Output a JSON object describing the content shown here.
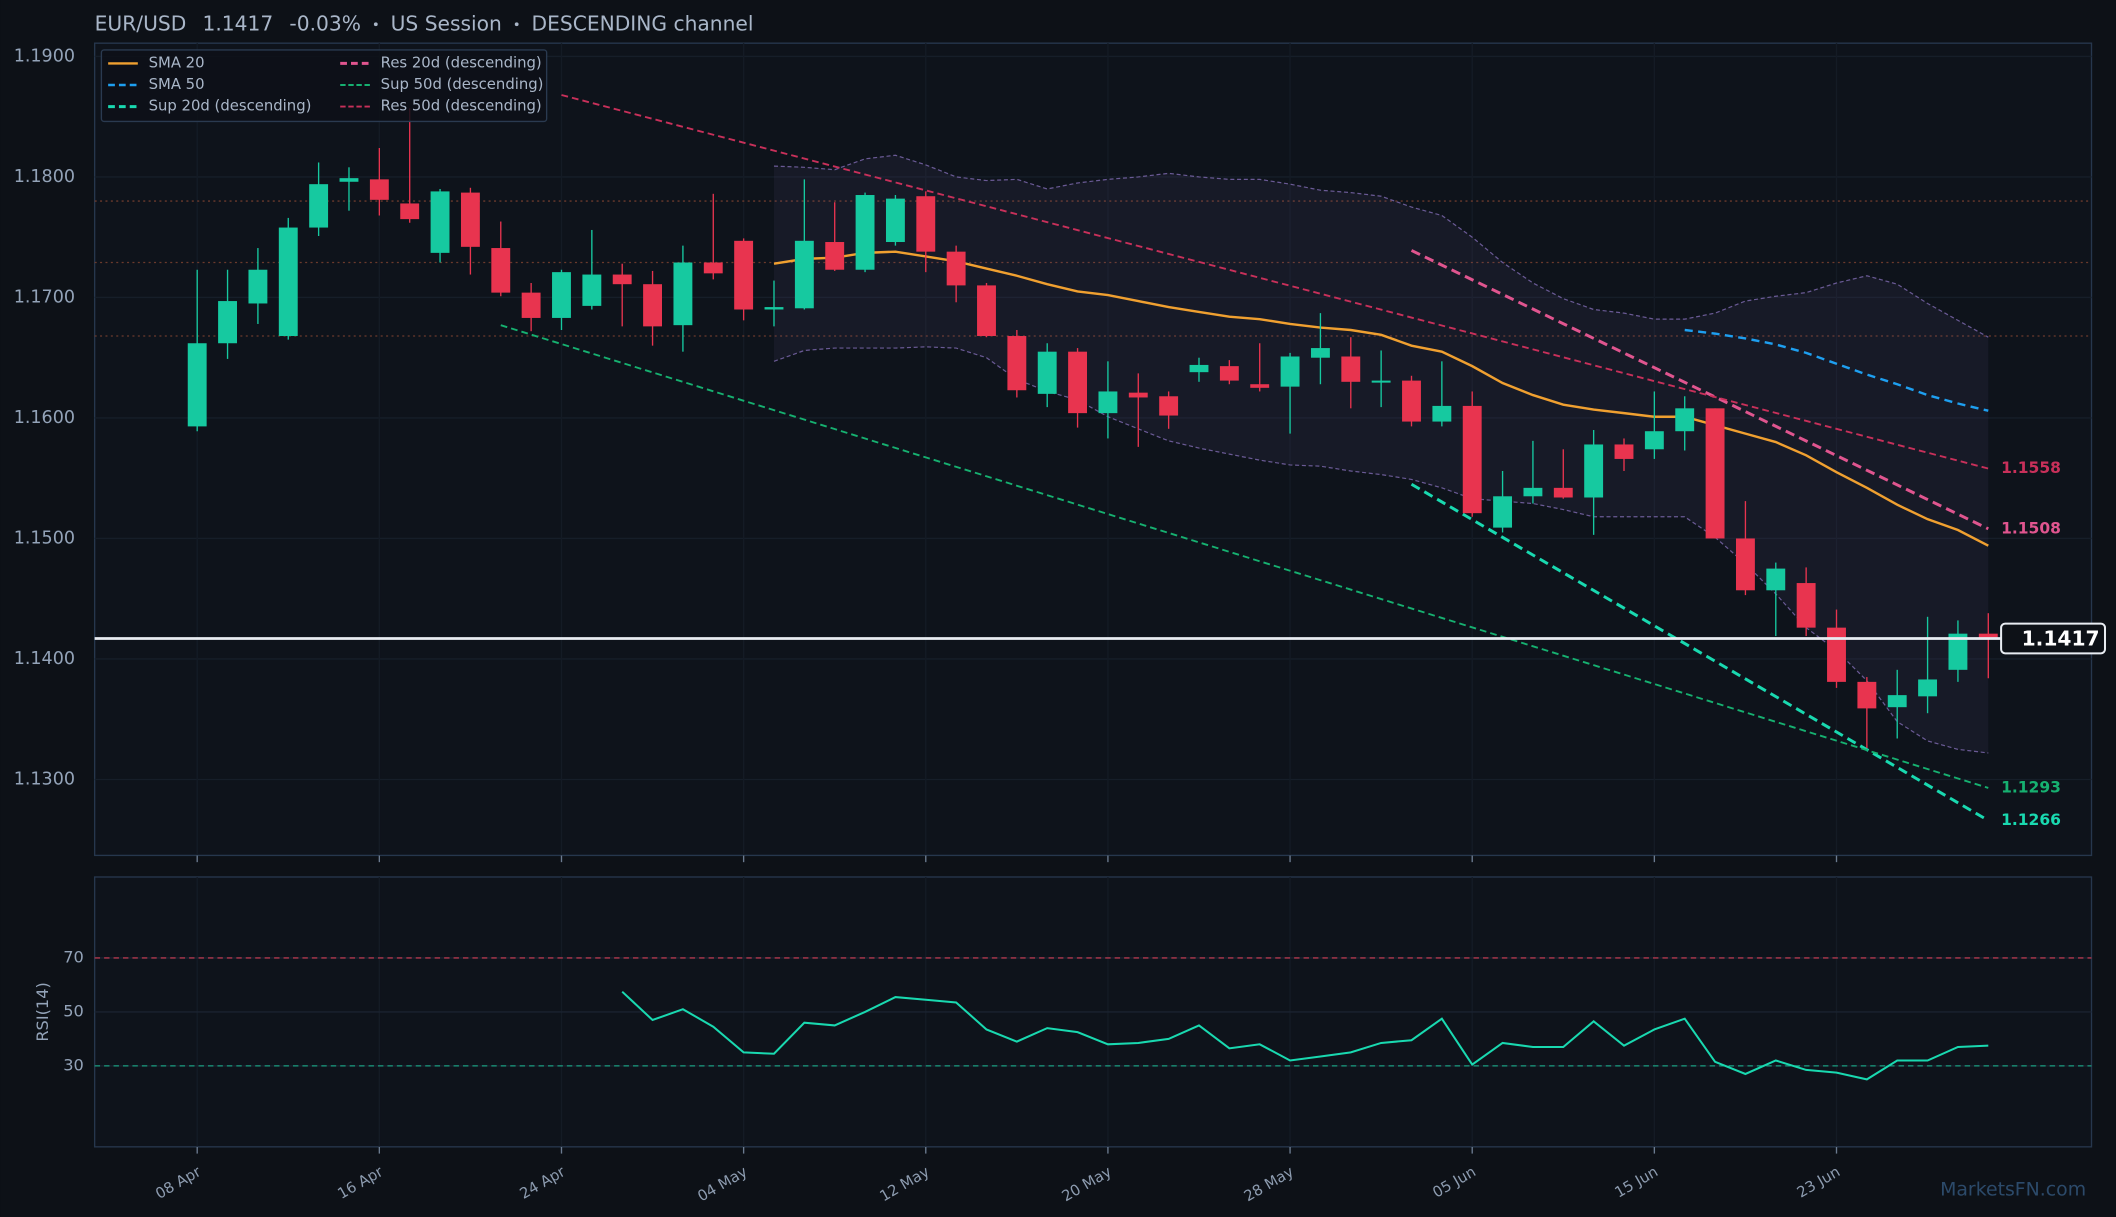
{
  "chart_data": [
    {
      "type": "candlestick",
      "symbol": "EUR/USD",
      "price": 1.1417,
      "change_label": "-0.03%",
      "session": "US Session",
      "channel": "DESCENDING channel",
      "watermark": "MarketsFN.com",
      "categories": [
        "08 Apr",
        null,
        null,
        null,
        null,
        null,
        "16 Apr",
        null,
        null,
        null,
        null,
        null,
        "24 Apr",
        null,
        null,
        null,
        null,
        null,
        "04 May",
        null,
        null,
        null,
        null,
        null,
        "12 May",
        null,
        null,
        null,
        null,
        null,
        "20 May",
        null,
        null,
        null,
        null,
        null,
        "28 May",
        null,
        null,
        null,
        null,
        null,
        "05 Jun",
        null,
        null,
        null,
        null,
        null,
        "15 Jun",
        null,
        null,
        null,
        null,
        null,
        "23 Jun",
        null,
        null,
        null,
        null,
        null
      ],
      "open": [
        1.1593,
        1.1662,
        1.1695,
        1.1668,
        1.1758,
        1.1796,
        1.1798,
        1.1778,
        1.1737,
        1.1787,
        1.1741,
        1.1704,
        1.1683,
        1.1693,
        1.1719,
        1.1711,
        1.1677,
        1.1729,
        1.1747,
        1.169,
        1.1691,
        1.1746,
        1.1723,
        1.1746,
        1.1784,
        1.1738,
        1.171,
        1.1668,
        1.162,
        1.1655,
        1.1604,
        1.1621,
        1.1618,
        1.1638,
        1.1643,
        1.1628,
        1.1626,
        1.165,
        1.1651,
        1.163,
        1.1631,
        1.1597,
        1.161,
        1.1509,
        1.1535,
        1.1542,
        1.1534,
        1.1578,
        1.1574,
        1.1589,
        1.1608,
        1.15,
        1.1457,
        1.1463,
        1.1426,
        1.1381,
        1.136,
        1.1369,
        1.1391,
        1.1421
      ],
      "high": [
        1.1723,
        1.1723,
        1.1741,
        1.1766,
        1.1812,
        1.1808,
        1.1824,
        1.1857,
        1.179,
        1.1791,
        1.1763,
        1.1712,
        1.1723,
        1.1756,
        1.1728,
        1.1722,
        1.1743,
        1.1786,
        1.1749,
        1.1714,
        1.1798,
        1.1779,
        1.1787,
        1.1785,
        1.1788,
        1.1743,
        1.1712,
        1.1673,
        1.1662,
        1.1658,
        1.1647,
        1.1637,
        1.1622,
        1.165,
        1.1648,
        1.1662,
        1.1654,
        1.1687,
        1.1667,
        1.1656,
        1.1635,
        1.1647,
        1.1622,
        1.1556,
        1.1581,
        1.1574,
        1.159,
        1.1583,
        1.1622,
        1.1618,
        1.1608,
        1.1531,
        1.148,
        1.1476,
        1.1441,
        1.1385,
        1.1391,
        1.1435,
        1.1432,
        1.1438
      ],
      "low": [
        1.1589,
        1.1649,
        1.1678,
        1.1665,
        1.1751,
        1.1772,
        1.1768,
        1.1762,
        1.1729,
        1.1719,
        1.1701,
        1.1672,
        1.1673,
        1.169,
        1.1676,
        1.166,
        1.1655,
        1.1715,
        1.1681,
        1.1676,
        1.169,
        1.1722,
        1.1721,
        1.1743,
        1.1721,
        1.1696,
        1.1667,
        1.1617,
        1.1609,
        1.1592,
        1.1583,
        1.1576,
        1.1591,
        1.163,
        1.1628,
        1.1622,
        1.1587,
        1.1628,
        1.1608,
        1.1609,
        1.1593,
        1.1593,
        1.1518,
        1.1505,
        1.1529,
        1.1533,
        1.1503,
        1.1556,
        1.1566,
        1.1573,
        1.15,
        1.1453,
        1.1419,
        1.1419,
        1.1376,
        1.1326,
        1.1334,
        1.1355,
        1.1381,
        1.1384
      ],
      "close": [
        1.1662,
        1.1697,
        1.1723,
        1.1758,
        1.1794,
        1.1799,
        1.1781,
        1.1765,
        1.1788,
        1.1742,
        1.1704,
        1.1683,
        1.1721,
        1.1719,
        1.1711,
        1.1676,
        1.1729,
        1.172,
        1.169,
        1.1692,
        1.1747,
        1.1723,
        1.1785,
        1.1782,
        1.1738,
        1.171,
        1.1668,
        1.1623,
        1.1655,
        1.1604,
        1.1622,
        1.1617,
        1.1602,
        1.1644,
        1.1631,
        1.1625,
        1.1651,
        1.1658,
        1.163,
        1.1631,
        1.1597,
        1.161,
        1.1521,
        1.1535,
        1.1542,
        1.1534,
        1.1578,
        1.1566,
        1.1589,
        1.1608,
        1.15,
        1.1457,
        1.1475,
        1.1426,
        1.1381,
        1.1359,
        1.137,
        1.1383,
        1.1421,
        1.1417
      ],
      "up_color": "#16c9a0",
      "down_color": "#e8344f",
      "series": [
        {
          "name": "SMA 20",
          "color": "#f0a030",
          "dash": "solid",
          "values": [
            null,
            null,
            null,
            null,
            null,
            null,
            null,
            null,
            null,
            null,
            null,
            null,
            null,
            null,
            null,
            null,
            null,
            null,
            null,
            1.1728,
            1.1732,
            1.1733,
            1.1737,
            1.1738,
            1.1734,
            1.173,
            1.1724,
            1.1718,
            1.1711,
            1.1705,
            1.1702,
            1.1697,
            1.1692,
            1.1688,
            1.1684,
            1.1682,
            1.1678,
            1.1675,
            1.1673,
            1.1669,
            1.166,
            1.1655,
            1.1643,
            1.1629,
            1.1619,
            1.1611,
            1.1607,
            1.1604,
            1.1601,
            1.1601,
            1.1594,
            1.1587,
            1.158,
            1.1569,
            1.1555,
            1.1542,
            1.1528,
            1.1516,
            1.1507,
            1.1494
          ]
        },
        {
          "name": "SMA 50",
          "color": "#1e9ff0",
          "dash": "dashed",
          "values": [
            null,
            null,
            null,
            null,
            null,
            null,
            null,
            null,
            null,
            null,
            null,
            null,
            null,
            null,
            null,
            null,
            null,
            null,
            null,
            null,
            null,
            null,
            null,
            null,
            null,
            null,
            null,
            null,
            null,
            null,
            null,
            null,
            null,
            null,
            null,
            null,
            null,
            null,
            null,
            null,
            null,
            null,
            null,
            null,
            null,
            null,
            null,
            null,
            null,
            1.1673,
            1.167,
            1.1666,
            1.1661,
            1.1654,
            1.1645,
            1.1636,
            1.1628,
            1.1619,
            1.1612,
            1.1606
          ]
        }
      ],
      "bands": {
        "color": "#6a5a95",
        "upper": [
          null,
          null,
          null,
          null,
          null,
          null,
          null,
          null,
          null,
          null,
          null,
          null,
          null,
          null,
          null,
          null,
          null,
          null,
          null,
          1.1809,
          1.1808,
          1.1806,
          1.1815,
          1.1818,
          1.181,
          1.18,
          1.1797,
          1.1798,
          1.179,
          1.1795,
          1.1798,
          1.18,
          1.1803,
          1.18,
          1.1798,
          1.1798,
          1.1794,
          1.1789,
          1.1787,
          1.1784,
          1.1775,
          1.1768,
          1.175,
          1.1729,
          1.1712,
          1.1699,
          1.169,
          1.1687,
          1.1682,
          1.1682,
          1.1687,
          1.1697,
          1.1701,
          1.1704,
          1.1712,
          1.1718,
          1.1711,
          1.1695,
          1.1681,
          1.1667
        ],
        "lower": [
          null,
          null,
          null,
          null,
          null,
          null,
          null,
          null,
          null,
          null,
          null,
          null,
          null,
          null,
          null,
          null,
          null,
          null,
          null,
          1.1647,
          1.1656,
          1.1658,
          1.1658,
          1.1658,
          1.1659,
          1.1658,
          1.165,
          1.1632,
          1.1622,
          1.1615,
          1.1601,
          1.1591,
          1.1581,
          1.1575,
          1.157,
          1.1565,
          1.1561,
          1.156,
          1.1556,
          1.1553,
          1.1549,
          1.1542,
          1.1533,
          1.1531,
          1.1529,
          1.1524,
          1.1518,
          1.1518,
          1.1518,
          1.1518,
          1.1501,
          1.1479,
          1.1454,
          1.1426,
          1.1407,
          1.1382,
          1.1348,
          1.1332,
          1.1325,
          1.1322
        ]
      },
      "trend_lines": [
        {
          "name": "Sup 20d (descending)",
          "color": "#19d9b0",
          "width": 2.2,
          "x": [
            40,
            59
          ],
          "values": [
            1.1545,
            1.1266
          ]
        },
        {
          "name": "Res 20d (descending)",
          "color": "#e0558f",
          "width": 2.2,
          "x": [
            40,
            59
          ],
          "values": [
            1.1739,
            1.1508
          ]
        },
        {
          "name": "Sup 50d (descending)",
          "color": "#16b070",
          "width": 1.4,
          "x": [
            10,
            59
          ],
          "values": [
            1.1677,
            1.1293
          ]
        },
        {
          "name": "Res 50d (descending)",
          "color": "#c8305a",
          "width": 1.4,
          "x": [
            12,
            59
          ],
          "values": [
            1.1868,
            1.1558
          ]
        }
      ],
      "levels": [
        1.178,
        1.1729,
        1.1668
      ],
      "level_color": "#6b3a2c",
      "ylim": [
        1.1237,
        1.1911
      ],
      "yticks": [
        {
          "value": 1.13,
          "label": "1.1300"
        },
        {
          "value": 1.14,
          "label": "1.1400"
        },
        {
          "value": 1.15,
          "label": "1.1500"
        },
        {
          "value": 1.16,
          "label": "1.1600"
        },
        {
          "value": 1.17,
          "label": "1.1700"
        },
        {
          "value": 1.18,
          "label": "1.1800"
        },
        {
          "value": 1.19,
          "label": "1.1900"
        }
      ],
      "grid": true
    },
    {
      "type": "line",
      "ylabel": "RSI(14)",
      "ylim": [
        0,
        100
      ],
      "yticks": [
        30,
        50,
        70
      ],
      "reference_lines": [
        {
          "value": 70,
          "color": "#b0384c"
        },
        {
          "value": 30,
          "color": "#1a9e80"
        }
      ],
      "series": [
        {
          "name": "RSI",
          "color": "#19d9b0",
          "values": [
            null,
            null,
            null,
            null,
            null,
            null,
            null,
            null,
            null,
            null,
            null,
            null,
            null,
            null,
            57.5,
            47,
            51,
            44.5,
            35,
            34.5,
            46,
            45,
            50,
            55.5,
            54.5,
            53.5,
            43.5,
            39,
            44,
            42.5,
            38,
            38.5,
            40,
            45,
            36.5,
            38,
            32,
            33.5,
            35,
            38.5,
            39.5,
            47.5,
            30.5,
            38.5,
            37,
            37,
            46.5,
            37.5,
            43.5,
            47.5,
            31.5,
            27,
            32,
            28.5,
            27.5,
            25,
            32,
            32,
            37,
            37.5
          ]
        }
      ]
    }
  ]
}
